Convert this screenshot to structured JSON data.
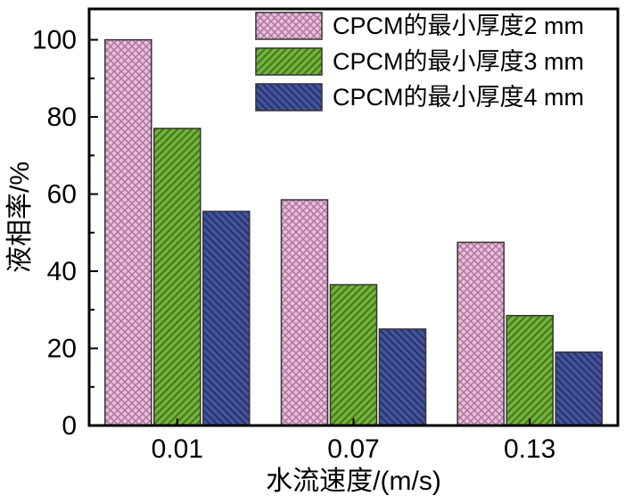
{
  "chart_data": {
    "type": "bar",
    "categories": [
      "0.01",
      "0.07",
      "0.13"
    ],
    "series": [
      {
        "name": "CPCM的最小厚度2 mm",
        "values": [
          100,
          58.5,
          47.5
        ],
        "fill": "#e7c0d9",
        "hatch": "cross",
        "hatch_color": "#b0739f"
      },
      {
        "name": "CPCM的最小厚度3 mm",
        "values": [
          77,
          36.5,
          28.5
        ],
        "fill": "#74b33c",
        "hatch": "diag_up",
        "hatch_color": "#44791c"
      },
      {
        "name": "CPCM的最小厚度4 mm",
        "values": [
          55.5,
          25,
          19
        ],
        "fill": "#44549e",
        "hatch": "diag_down",
        "hatch_color": "#273468"
      }
    ],
    "title": "",
    "xlabel": "水流速度/(m/s)",
    "ylabel": "液相率/%",
    "ylim": [
      0,
      108
    ],
    "yticks": [
      0,
      20,
      40,
      60,
      80,
      100
    ],
    "minor_tick_step": 10,
    "legend_position": "top-right",
    "grid": false,
    "frame_color": "#000000",
    "bar_border_color": "#333333"
  }
}
